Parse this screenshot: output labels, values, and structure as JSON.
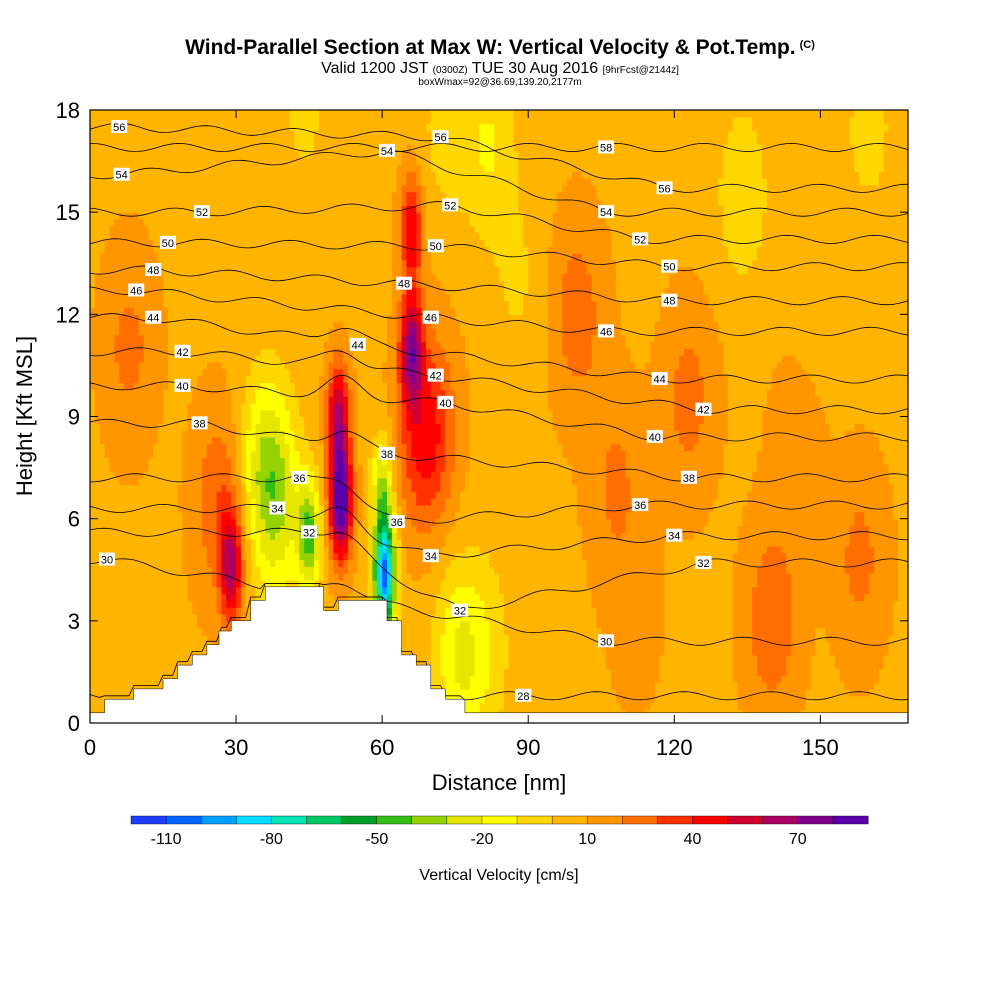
{
  "header": {
    "title": "Wind-Parallel Section at Max W: Vertical Velocity & Pot.Temp.",
    "copyright": "(C)",
    "valid_prefix": "Valid 1200 JST",
    "valid_utc": "(0300Z)",
    "valid_date": "TUE 30 Aug 2016",
    "forecast": "[9hrFcst@2144z]",
    "box_info": "boxWmax=92@36.69,139.20,2177m"
  },
  "chart_data": {
    "type": "contour",
    "xlabel": "Distance [nm]",
    "ylabel": "Height [Kft MSL]",
    "xlim": [
      0,
      168
    ],
    "ylim": [
      0,
      18
    ],
    "x_ticks": [
      0,
      30,
      60,
      90,
      120,
      150
    ],
    "y_ticks": [
      0,
      3,
      6,
      9,
      12,
      15,
      18
    ],
    "colorbar": {
      "label": "Vertical Velocity [cm/s]",
      "tick_labels": [
        "-110",
        "-80",
        "-50",
        "-20",
        "10",
        "40",
        "70"
      ],
      "colors": [
        "#1e3cff",
        "#0064ff",
        "#00a0ff",
        "#00dcff",
        "#00e6b4",
        "#00c864",
        "#00a028",
        "#32be14",
        "#96d200",
        "#e6e600",
        "#ffff00",
        "#ffd700",
        "#ffb400",
        "#ff9600",
        "#ff6e00",
        "#ff3200",
        "#ff0000",
        "#d2002d",
        "#aa0064",
        "#82008c",
        "#5a00aa"
      ],
      "boundaries": [
        -120,
        -110,
        -100,
        -90,
        -80,
        -70,
        -60,
        -50,
        -40,
        -30,
        -20,
        -10,
        0,
        10,
        20,
        30,
        40,
        50,
        60,
        70,
        80,
        90
      ]
    },
    "terrain_profile": [
      [
        0,
        0.3
      ],
      [
        3,
        0.3
      ],
      [
        3,
        0.7
      ],
      [
        9,
        0.7
      ],
      [
        9,
        1.0
      ],
      [
        15,
        1.0
      ],
      [
        15,
        1.3
      ],
      [
        18,
        1.3
      ],
      [
        18,
        1.7
      ],
      [
        21,
        1.7
      ],
      [
        21,
        2.0
      ],
      [
        24,
        2.0
      ],
      [
        24,
        2.3
      ],
      [
        26.5,
        2.3
      ],
      [
        26.5,
        2.7
      ],
      [
        29,
        2.7
      ],
      [
        29,
        3.0
      ],
      [
        33,
        3.0
      ],
      [
        33,
        3.6
      ],
      [
        36,
        3.6
      ],
      [
        36,
        4.0
      ],
      [
        48,
        4.0
      ],
      [
        48,
        3.3
      ],
      [
        51,
        3.3
      ],
      [
        51,
        3.6
      ],
      [
        61,
        3.6
      ],
      [
        61,
        3.0
      ],
      [
        64,
        3.0
      ],
      [
        64,
        2.0
      ],
      [
        67,
        2.0
      ],
      [
        67,
        1.7
      ],
      [
        70,
        1.7
      ],
      [
        70,
        1.0
      ],
      [
        73,
        1.0
      ],
      [
        73,
        0.7
      ],
      [
        77,
        0.7
      ],
      [
        77,
        0.3
      ],
      [
        168,
        0.3
      ]
    ],
    "vertical_velocity_features": [
      {
        "x": 29,
        "y": 4.6,
        "value": 52
      },
      {
        "x": 27,
        "y": 6.5,
        "value": 22
      },
      {
        "x": 8,
        "y": 11,
        "value": 15
      },
      {
        "x": 36,
        "y": 7.5,
        "value": -35
      },
      {
        "x": 39,
        "y": 6.0,
        "value": -22
      },
      {
        "x": 45,
        "y": 5.5,
        "value": -48
      },
      {
        "x": 51.5,
        "y": 6.5,
        "value": 88
      },
      {
        "x": 51,
        "y": 9.0,
        "value": 55
      },
      {
        "x": 60.5,
        "y": 4.3,
        "value": -108
      },
      {
        "x": 60,
        "y": 6.8,
        "value": -42
      },
      {
        "x": 66,
        "y": 11.0,
        "value": 60
      },
      {
        "x": 66,
        "y": 14.5,
        "value": 42
      },
      {
        "x": 69,
        "y": 8.5,
        "value": 40
      },
      {
        "x": 76,
        "y": 2.0,
        "value": -28
      },
      {
        "x": 82,
        "y": 2.0,
        "value": -10
      },
      {
        "x": 82,
        "y": 17,
        "value": -18
      },
      {
        "x": 73,
        "y": 17.5,
        "value": -12
      },
      {
        "x": 44,
        "y": 17.8,
        "value": -10
      },
      {
        "x": 88,
        "y": 13,
        "value": -9
      },
      {
        "x": 85,
        "y": 7,
        "value": -3
      },
      {
        "x": 100,
        "y": 12,
        "value": 18
      },
      {
        "x": 108,
        "y": 7,
        "value": 14
      },
      {
        "x": 134,
        "y": 15.5,
        "value": -16
      },
      {
        "x": 150,
        "y": 13,
        "value": -6
      },
      {
        "x": 160,
        "y": 17.5,
        "value": -12
      },
      {
        "x": 123,
        "y": 9.5,
        "value": 16
      },
      {
        "x": 140,
        "y": 3.0,
        "value": 20
      },
      {
        "x": 158,
        "y": 4.8,
        "value": 15
      },
      {
        "x": 112,
        "y": 3.0,
        "value": 6
      },
      {
        "x": 145,
        "y": 8.0,
        "value": 9
      }
    ],
    "isotherm_labels": [
      {
        "x": 6,
        "y": 17.5,
        "text": "56"
      },
      {
        "x": 6.5,
        "y": 16.1,
        "text": "54"
      },
      {
        "x": 23,
        "y": 15.0,
        "text": "52"
      },
      {
        "x": 16,
        "y": 14.1,
        "text": "50"
      },
      {
        "x": 13,
        "y": 13.3,
        "text": "48"
      },
      {
        "x": 9.5,
        "y": 12.7,
        "text": "46"
      },
      {
        "x": 13,
        "y": 11.9,
        "text": "44"
      },
      {
        "x": 19,
        "y": 10.9,
        "text": "42"
      },
      {
        "x": 19,
        "y": 9.9,
        "text": "40"
      },
      {
        "x": 22.5,
        "y": 8.8,
        "text": "38"
      },
      {
        "x": 3.5,
        "y": 4.8,
        "text": "30"
      },
      {
        "x": 38.5,
        "y": 6.3,
        "text": "34"
      },
      {
        "x": 43,
        "y": 7.2,
        "text": "36"
      },
      {
        "x": 45,
        "y": 5.6,
        "text": "32"
      },
      {
        "x": 55,
        "y": 11.1,
        "text": "44"
      },
      {
        "x": 61,
        "y": 16.8,
        "text": "54"
      },
      {
        "x": 72,
        "y": 17.2,
        "text": "56"
      },
      {
        "x": 74,
        "y": 15.2,
        "text": "52"
      },
      {
        "x": 71,
        "y": 14.0,
        "text": "50"
      },
      {
        "x": 64.5,
        "y": 12.9,
        "text": "48"
      },
      {
        "x": 70,
        "y": 11.9,
        "text": "46"
      },
      {
        "x": 71,
        "y": 10.2,
        "text": "42"
      },
      {
        "x": 73,
        "y": 9.4,
        "text": "40"
      },
      {
        "x": 61,
        "y": 7.9,
        "text": "38"
      },
      {
        "x": 63,
        "y": 5.9,
        "text": "36"
      },
      {
        "x": 70,
        "y": 4.9,
        "text": "34"
      },
      {
        "x": 76,
        "y": 3.3,
        "text": "32"
      },
      {
        "x": 89,
        "y": 0.8,
        "text": "28"
      },
      {
        "x": 106,
        "y": 16.9,
        "text": "58"
      },
      {
        "x": 118,
        "y": 15.7,
        "text": "56"
      },
      {
        "x": 106,
        "y": 15.0,
        "text": "54"
      },
      {
        "x": 113,
        "y": 14.2,
        "text": "52"
      },
      {
        "x": 119,
        "y": 13.4,
        "text": "50"
      },
      {
        "x": 119,
        "y": 12.4,
        "text": "48"
      },
      {
        "x": 106,
        "y": 11.5,
        "text": "46"
      },
      {
        "x": 117,
        "y": 10.1,
        "text": "44"
      },
      {
        "x": 126,
        "y": 9.2,
        "text": "42"
      },
      {
        "x": 116,
        "y": 8.4,
        "text": "40"
      },
      {
        "x": 123,
        "y": 7.2,
        "text": "38"
      },
      {
        "x": 113,
        "y": 6.4,
        "text": "36"
      },
      {
        "x": 120,
        "y": 5.5,
        "text": "34"
      },
      {
        "x": 126,
        "y": 4.7,
        "text": "32"
      },
      {
        "x": 106,
        "y": 2.4,
        "text": "30"
      }
    ]
  }
}
